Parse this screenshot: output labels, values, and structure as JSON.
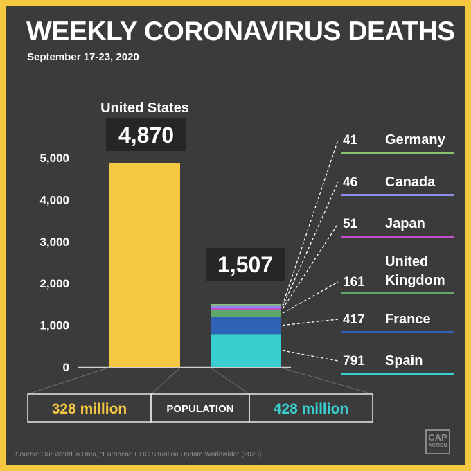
{
  "header": {
    "title": "WEEKLY CORONAVIRUS DEATHS",
    "subtitle": "September 17-23, 2020"
  },
  "colors": {
    "background": "#3b3b3b",
    "border": "#f5c842",
    "us_bar": "#f5c842",
    "text": "#ffffff",
    "germany": "#8bc26e",
    "canada": "#8d8ee8",
    "japan": "#c14fc9",
    "united_kingdom": "#5fa86a",
    "france": "#2e63b8",
    "spain": "#39cfd1"
  },
  "chart_data": {
    "type": "bar",
    "title": "WEEKLY CORONAVIRUS DEATHS",
    "subtitle": "September 17-23, 2020",
    "ylim": [
      0,
      5000
    ],
    "y_ticks": [
      "0",
      "1,000",
      "2,000",
      "3,000",
      "4,000",
      "5,000"
    ],
    "bars": [
      {
        "label": "United States",
        "total": 4870,
        "total_label": "4,870",
        "population": "328 million",
        "color": "#f5c842"
      },
      {
        "label": "",
        "total": 1507,
        "total_label": "1,507",
        "population": "428 million",
        "color": "#39cfd1",
        "stack": [
          {
            "name": "Spain",
            "value": 791,
            "value_label": "791",
            "color": "#39cfd1"
          },
          {
            "name": "France",
            "value": 417,
            "value_label": "417",
            "color": "#2e63b8"
          },
          {
            "name": "United Kingdom",
            "value": 161,
            "value_label": "161",
            "color": "#5fa86a"
          },
          {
            "name": "Japan",
            "value": 51,
            "value_label": "51",
            "color": "#c14fc9"
          },
          {
            "name": "Canada",
            "value": 46,
            "value_label": "46",
            "color": "#8d8ee8"
          },
          {
            "name": "Germany",
            "value": 41,
            "value_label": "41",
            "color": "#8bc26e"
          }
        ]
      }
    ],
    "population_label": "POPULATION",
    "grid": false
  },
  "footer": {
    "source": "Source: Our World in Data, \"European CDC Situation Update Worldwide\" (2020).",
    "logo_line1": "CAP",
    "logo_line2": "ACTION"
  }
}
